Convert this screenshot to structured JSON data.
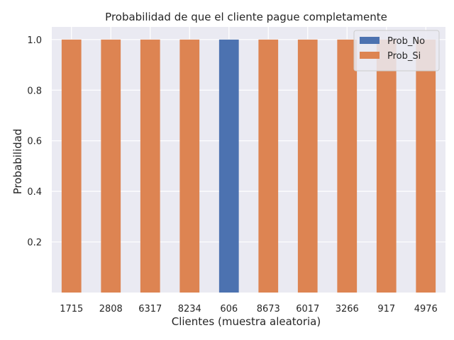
{
  "chart_data": {
    "type": "bar",
    "stacked": true,
    "title": "Probabilidad de que el cliente pague completamente",
    "xlabel": "Clientes (muestra aleatoria)",
    "ylabel": "Probabilidad",
    "categories": [
      "1715",
      "2808",
      "6317",
      "8234",
      "606",
      "8673",
      "6017",
      "3266",
      "917",
      "4976"
    ],
    "series": [
      {
        "name": "Prob_No",
        "color": "#4c72b0",
        "values": [
          0,
          0,
          0,
          0,
          1.0,
          0,
          0,
          0,
          0,
          0
        ]
      },
      {
        "name": "Prob_Si",
        "color": "#dd8452",
        "values": [
          1.0,
          1.0,
          1.0,
          1.0,
          0,
          1.0,
          1.0,
          1.0,
          1.0,
          1.0
        ]
      }
    ],
    "ylim": [
      0,
      1.05
    ],
    "yticks": [
      0.2,
      0.4,
      0.6,
      0.8,
      1.0
    ],
    "ytick_labels": [
      "0.2",
      "0.4",
      "0.6",
      "0.8",
      "1.0"
    ],
    "grid": true,
    "legend_position": "top-right"
  }
}
